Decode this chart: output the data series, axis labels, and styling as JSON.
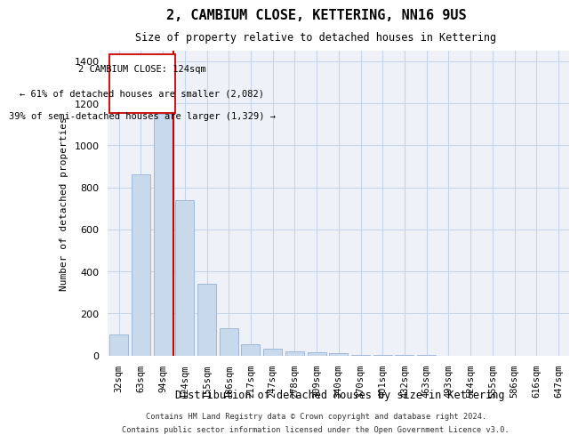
{
  "title": "2, CAMBIUM CLOSE, KETTERING, NN16 9US",
  "subtitle": "Size of property relative to detached houses in Kettering",
  "xlabel": "Distribution of detached houses by size in Kettering",
  "ylabel": "Number of detached properties",
  "bins": [
    "32sqm",
    "63sqm",
    "94sqm",
    "124sqm",
    "155sqm",
    "186sqm",
    "217sqm",
    "247sqm",
    "278sqm",
    "309sqm",
    "340sqm",
    "370sqm",
    "401sqm",
    "432sqm",
    "463sqm",
    "493sqm",
    "524sqm",
    "555sqm",
    "586sqm",
    "616sqm",
    "647sqm"
  ],
  "values": [
    100,
    860,
    1150,
    740,
    340,
    130,
    55,
    30,
    20,
    15,
    10,
    4,
    2,
    1,
    1,
    0,
    0,
    0,
    0,
    0,
    0
  ],
  "bar_color": "#c9d9ec",
  "bar_edgecolor": "#a0b8d8",
  "redline_bin_index": 3,
  "redline_label": "2 CAMBIUM CLOSE: 124sqm",
  "annotation_line1": "← 61% of detached houses are smaller (2,082)",
  "annotation_line2": "39% of semi-detached houses are larger (1,329) →",
  "annotation_box_edgecolor": "#cc0000",
  "redline_color": "#cc0000",
  "grid_color": "#c8d4e8",
  "ylim": [
    0,
    1450
  ],
  "yticks": [
    0,
    200,
    400,
    600,
    800,
    1000,
    1200,
    1400
  ],
  "footer1": "Contains HM Land Registry data © Crown copyright and database right 2024.",
  "footer2": "Contains public sector information licensed under the Open Government Licence v3.0.",
  "bg_color": "#eef2f8"
}
